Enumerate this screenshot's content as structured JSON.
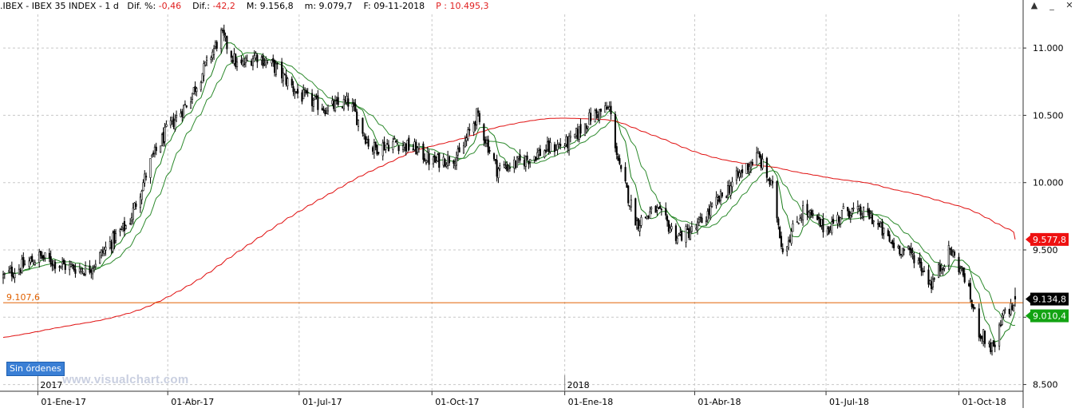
{
  "header": {
    "symbol": ".IBEX",
    "name": "IBEX 35 INDEX",
    "timeframe": "1 d",
    "dif_pct_label": "Dif. %:",
    "dif_pct_value": "-0,46",
    "dif_label": "Dif.:",
    "dif_value": "-42,2",
    "max_label": "M:",
    "max_value": "9.156,8",
    "min_label": "m:",
    "min_value": "9.079,7",
    "date_label": "F:",
    "date_value": "09-11-2018",
    "price_label": "P :",
    "price_value": "10.495,3"
  },
  "window_controls": {
    "scroll_up": "▲",
    "minimize": "_",
    "close": "✕"
  },
  "orders_badge": "Sin órdenes",
  "watermark": "www.visualchart.com",
  "colors": {
    "background": "#ffffff",
    "up_candle": "#ffffff",
    "down_candle": "#000000",
    "ma_fast": "#1b7d1b",
    "ma_slow": "#2e8b2e",
    "ma_long": "#e01010",
    "hline": "#e06000",
    "grid": "#c8c8c8",
    "badge_red": "#ee1111",
    "badge_black": "#000000",
    "badge_green": "#12a312"
  },
  "chart_data": {
    "type": "candlestick",
    "title": "IBEX 35 INDEX",
    "ylim": [
      8450,
      11250
    ],
    "y_ticks": [
      {
        "value": 8500,
        "label": "8.500"
      },
      {
        "value": 9000,
        "label": ""
      },
      {
        "value": 9500,
        "label": "9.500"
      },
      {
        "value": 10000,
        "label": "10.000"
      },
      {
        "value": 10500,
        "label": "10.500"
      },
      {
        "value": 11000,
        "label": "11.000"
      }
    ],
    "x_ticks": [
      {
        "date": "2017-01-01",
        "label": "01-Ene-17"
      },
      {
        "date": "2017-04-01",
        "label": "01-Abr-17"
      },
      {
        "date": "2017-07-01",
        "label": "01-Jul-17"
      },
      {
        "date": "2017-10-01",
        "label": "01-Oct-17"
      },
      {
        "date": "2018-01-01",
        "label": "01-Ene-18"
      },
      {
        "date": "2018-04-01",
        "label": "01-Abr-18"
      },
      {
        "date": "2018-07-01",
        "label": "01-Jul-18"
      },
      {
        "date": "2018-10-01",
        "label": "01-Oct-18"
      }
    ],
    "year_labels": [
      {
        "date": "2017-01-01",
        "label": "2017"
      },
      {
        "date": "2018-01-01",
        "label": "2018"
      }
    ],
    "x_range": [
      "2016-12-08",
      "2018-11-09"
    ],
    "grid": true,
    "close_path": [
      {
        "date": "2016-12-08",
        "value": 9300
      },
      {
        "date": "2017-01-02",
        "value": 9450
      },
      {
        "date": "2017-01-20",
        "value": 9380
      },
      {
        "date": "2017-02-05",
        "value": 9350
      },
      {
        "date": "2017-02-20",
        "value": 9550
      },
      {
        "date": "2017-03-05",
        "value": 9700
      },
      {
        "date": "2017-03-20",
        "value": 10150
      },
      {
        "date": "2017-04-01",
        "value": 10400
      },
      {
        "date": "2017-04-15",
        "value": 10600
      },
      {
        "date": "2017-05-01",
        "value": 10950
      },
      {
        "date": "2017-05-08",
        "value": 11100
      },
      {
        "date": "2017-05-20",
        "value": 10850
      },
      {
        "date": "2017-06-01",
        "value": 10950
      },
      {
        "date": "2017-06-15",
        "value": 10850
      },
      {
        "date": "2017-07-01",
        "value": 10650
      },
      {
        "date": "2017-07-20",
        "value": 10550
      },
      {
        "date": "2017-08-05",
        "value": 10600
      },
      {
        "date": "2017-08-20",
        "value": 10250
      },
      {
        "date": "2017-09-05",
        "value": 10300
      },
      {
        "date": "2017-09-20",
        "value": 10250
      },
      {
        "date": "2017-10-01",
        "value": 10150
      },
      {
        "date": "2017-10-20",
        "value": 10200
      },
      {
        "date": "2017-11-01",
        "value": 10500
      },
      {
        "date": "2017-11-15",
        "value": 10100
      },
      {
        "date": "2017-12-01",
        "value": 10150
      },
      {
        "date": "2017-12-20",
        "value": 10250
      },
      {
        "date": "2018-01-05",
        "value": 10300
      },
      {
        "date": "2018-01-20",
        "value": 10500
      },
      {
        "date": "2018-02-01",
        "value": 10550
      },
      {
        "date": "2018-02-08",
        "value": 10100
      },
      {
        "date": "2018-02-20",
        "value": 9700
      },
      {
        "date": "2018-03-05",
        "value": 9800
      },
      {
        "date": "2018-03-20",
        "value": 9600
      },
      {
        "date": "2018-04-01",
        "value": 9650
      },
      {
        "date": "2018-04-20",
        "value": 9900
      },
      {
        "date": "2018-05-05",
        "value": 10100
      },
      {
        "date": "2018-05-15",
        "value": 10200
      },
      {
        "date": "2018-05-25",
        "value": 9950
      },
      {
        "date": "2018-06-01",
        "value": 9500
      },
      {
        "date": "2018-06-15",
        "value": 9800
      },
      {
        "date": "2018-07-01",
        "value": 9650
      },
      {
        "date": "2018-07-15",
        "value": 9800
      },
      {
        "date": "2018-08-01",
        "value": 9750
      },
      {
        "date": "2018-08-15",
        "value": 9550
      },
      {
        "date": "2018-09-01",
        "value": 9450
      },
      {
        "date": "2018-09-12",
        "value": 9250
      },
      {
        "date": "2018-09-25",
        "value": 9500
      },
      {
        "date": "2018-10-05",
        "value": 9300
      },
      {
        "date": "2018-10-15",
        "value": 8900
      },
      {
        "date": "2018-10-25",
        "value": 8750
      },
      {
        "date": "2018-11-02",
        "value": 9050
      },
      {
        "date": "2018-11-09",
        "value": 9090
      }
    ],
    "moving_averages": [
      {
        "role": "fast",
        "color_key": "ma_fast",
        "last_value": 9010.4
      },
      {
        "role": "slow",
        "color_key": "ma_slow"
      },
      {
        "role": "long",
        "color_key": "ma_long",
        "last_value": 9577.8
      }
    ],
    "horizontal_line": {
      "value": 9107.6,
      "label": "9.107,6"
    },
    "last_price": 9134.8,
    "price_badges": [
      {
        "value": 9577.8,
        "label": "9.577,8",
        "color_key": "badge_red"
      },
      {
        "value": 9134.8,
        "label": "9.134,8",
        "color_key": "badge_black"
      },
      {
        "value": 9010.4,
        "label": "9.010,4",
        "color_key": "badge_green"
      }
    ]
  }
}
